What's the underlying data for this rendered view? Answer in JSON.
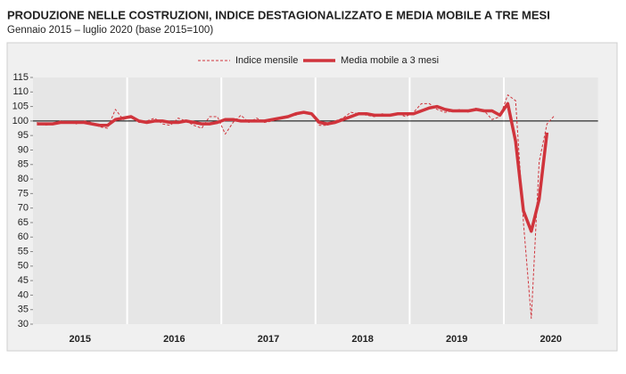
{
  "chart_data": {
    "type": "line",
    "title": "PRODUZIONE NELLE COSTRUZIONI, INDICE DESTAGIONALIZZATO E MEDIA MOBILE A TRE MESI",
    "subtitle": "Gennaio 2015 – luglio 2020 (base 2015=100)",
    "categories": [
      "2015",
      null,
      null,
      null,
      null,
      null,
      null,
      null,
      null,
      null,
      null,
      null,
      "2016",
      null,
      null,
      null,
      null,
      null,
      null,
      null,
      null,
      null,
      null,
      null,
      "2017",
      null,
      null,
      null,
      null,
      null,
      null,
      null,
      null,
      null,
      null,
      null,
      "2018",
      null,
      null,
      null,
      null,
      null,
      null,
      null,
      null,
      null,
      null,
      null,
      "2019",
      null,
      null,
      null,
      null,
      null,
      null,
      null,
      null,
      null,
      null,
      null,
      "2020",
      null,
      null,
      null,
      null,
      null,
      null
    ],
    "series": [
      {
        "name": "Indice mensile",
        "color": "#d0343c",
        "style": "dashed",
        "values": [
          99.5,
          98.5,
          99,
          100,
          99.5,
          99,
          100,
          99.5,
          98,
          97.5,
          104,
          100.5,
          101.5,
          99.5,
          100,
          101,
          99,
          98.5,
          101,
          100,
          98.5,
          97.5,
          101.5,
          101.5,
          95.5,
          99.5,
          102,
          99.5,
          101,
          99.5,
          100,
          101,
          101.5,
          102,
          103,
          102.5,
          98.5,
          98.5,
          100,
          101,
          103,
          102.5,
          102,
          101.5,
          102.5,
          102,
          102.5,
          101.5,
          103,
          106,
          106,
          104,
          103,
          103.5,
          104,
          103,
          104.5,
          103.5,
          100.5,
          101.5,
          109,
          107,
          65,
          32,
          86,
          99,
          102
        ]
      },
      {
        "name": "Media mobile a 3 mesi",
        "color": "#d0343c",
        "style": "solid",
        "values": [
          99,
          99,
          99,
          99.5,
          99.5,
          99.5,
          99.5,
          99,
          98.5,
          98.5,
          100.5,
          101,
          101.5,
          100,
          99.5,
          100,
          100,
          99.5,
          99.5,
          100,
          99.5,
          99,
          99,
          99.5,
          100.5,
          100.5,
          100,
          100,
          100,
          100,
          100.5,
          101,
          101.5,
          102.5,
          103,
          102.5,
          99.5,
          99,
          99.5,
          100.5,
          101.5,
          102.5,
          102.5,
          102,
          102,
          102,
          102.5,
          102.5,
          102.5,
          103.5,
          104.5,
          105,
          104,
          103.5,
          103.5,
          103.5,
          104,
          103.5,
          103.5,
          102,
          106,
          93,
          69,
          62,
          73,
          96,
          null
        ]
      }
    ],
    "ylim": [
      30,
      115
    ],
    "yticks": [
      30,
      35,
      40,
      45,
      50,
      55,
      60,
      65,
      70,
      75,
      80,
      85,
      90,
      95,
      100,
      105,
      110,
      115
    ],
    "reference_line": 100
  }
}
